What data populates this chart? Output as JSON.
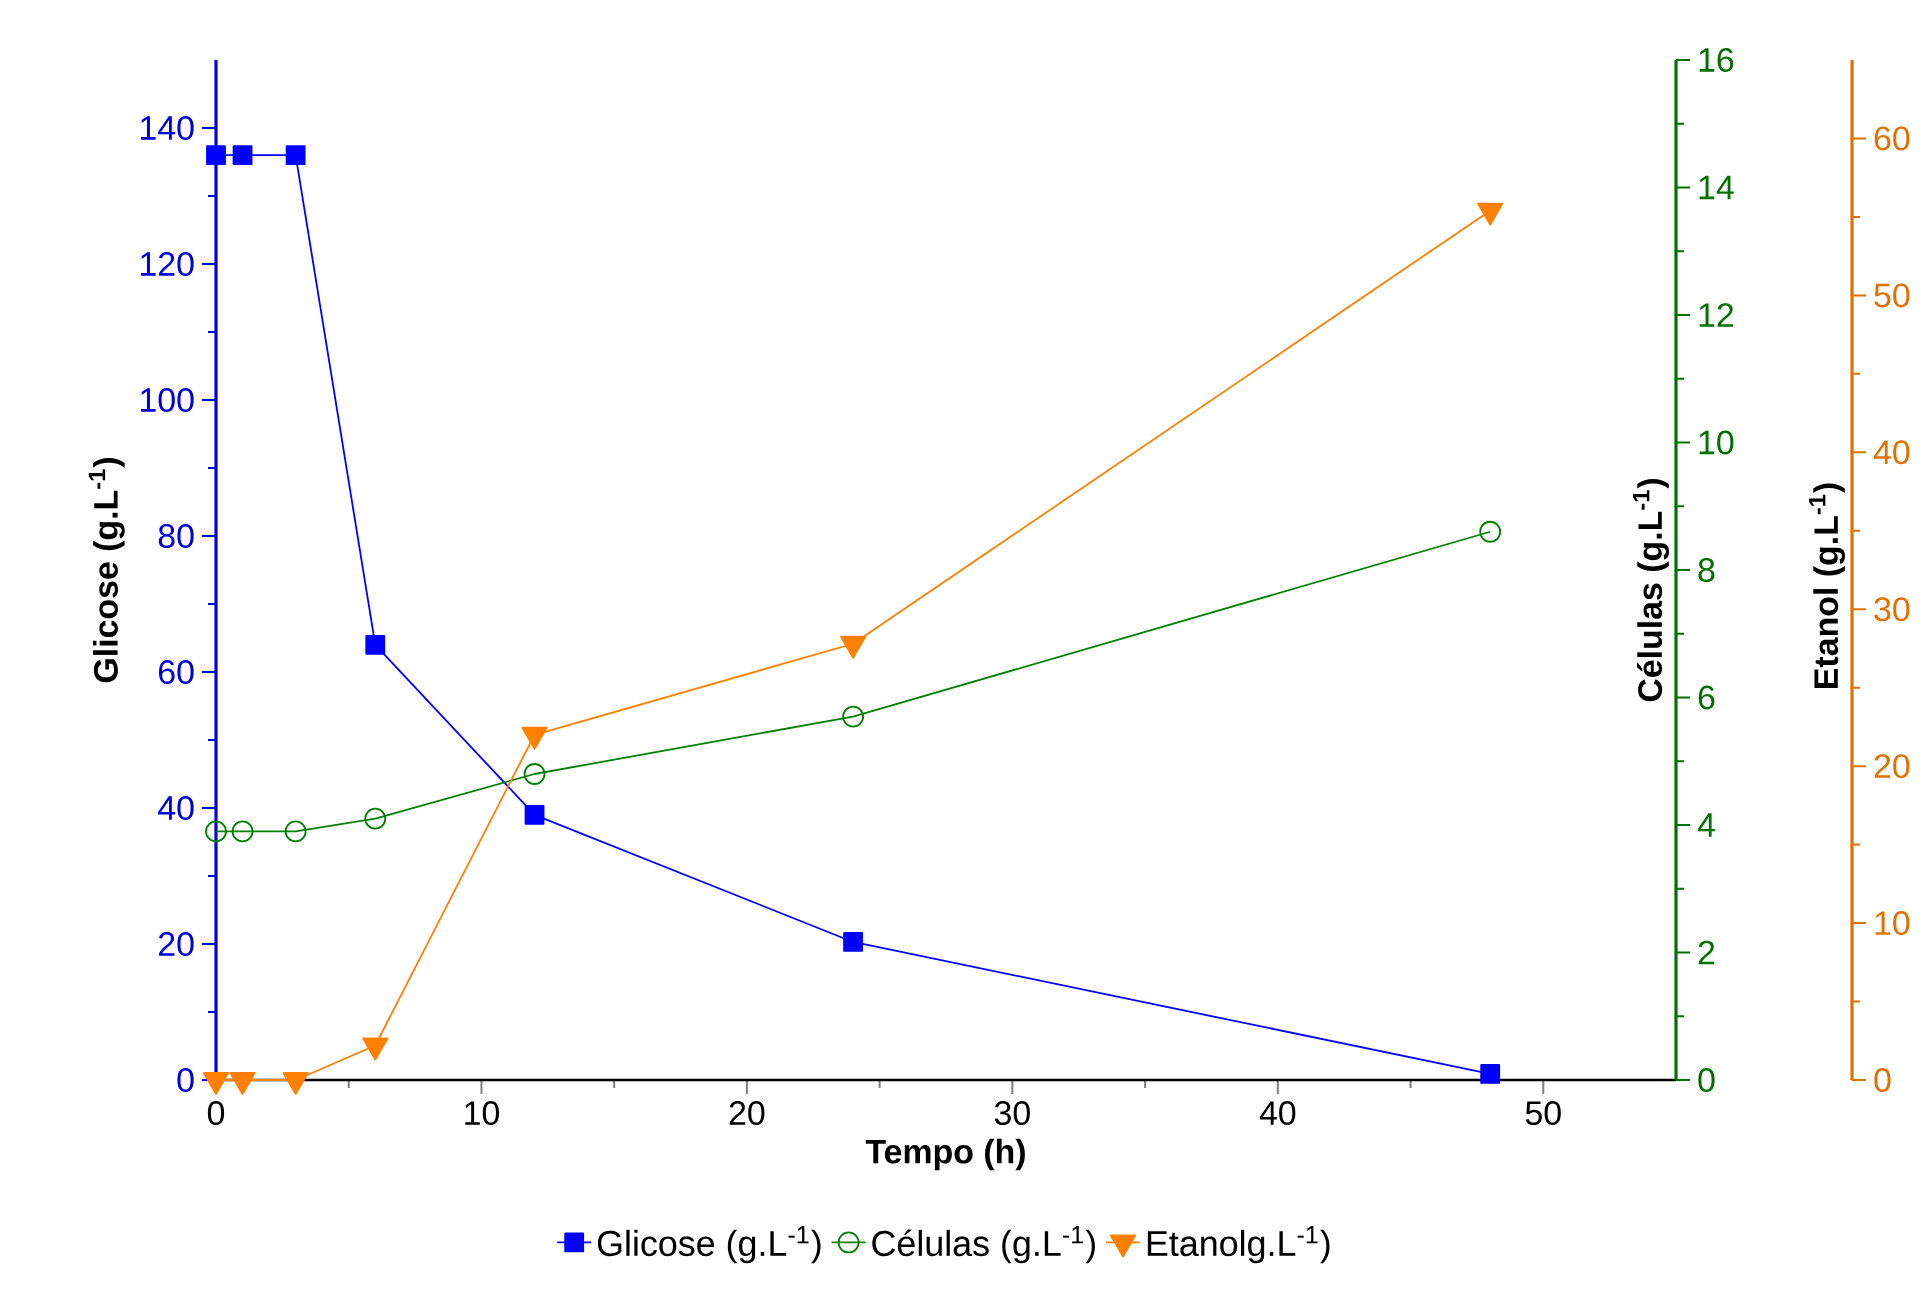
{
  "chart_data": {
    "type": "line",
    "xlabel": "Tempo (h)",
    "ylabel": "Glicose (g.L$^{-1}$)",
    "y2label": "Células (g.L$^{-1}$)",
    "y3label": "Etanol (g.L$^{-1}$)",
    "x": [
      0,
      1,
      3,
      6,
      12,
      24,
      48
    ],
    "xlim": [
      0,
      55
    ],
    "xticks": [
      0,
      10,
      20,
      30,
      40,
      50
    ],
    "ylim": [
      0,
      150
    ],
    "yticks": [
      0,
      20,
      40,
      60,
      80,
      100,
      120,
      140
    ],
    "y2lim": [
      0,
      16
    ],
    "y2ticks": [
      0,
      2,
      4,
      6,
      8,
      10,
      12,
      14,
      16
    ],
    "y3lim": [
      0,
      65
    ],
    "y3ticks": [
      0,
      10,
      20,
      30,
      40,
      50,
      60
    ],
    "legend": "bottom",
    "line_style": "solid",
    "series": [
      {
        "name": "Glicose (g.L$^{-1}$)",
        "color": "#0000ff",
        "marker": "square",
        "values": [
          136,
          136,
          136,
          64,
          39,
          20.3,
          0.9
        ]
      },
      {
        "name": "Células (g.L$^{-1}$)",
        "color": "#008000",
        "marker": "circle",
        "axis": "y2",
        "values": [
          3.9,
          3.9,
          3.9,
          4.1,
          4.8,
          5.7,
          8.6
        ]
      },
      {
        "name": "Etanolg.L$^{-1}$)",
        "color": "#ff8000",
        "marker": "triangle",
        "axis": "y3",
        "values": [
          0,
          0,
          0,
          2.2,
          22,
          27.8,
          55.4
        ]
      }
    ]
  }
}
